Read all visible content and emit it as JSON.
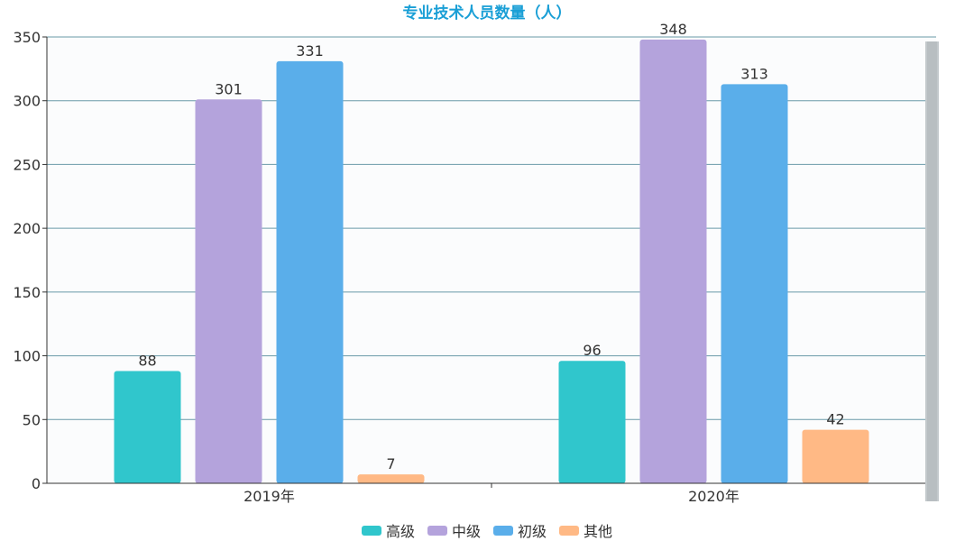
{
  "chart_data": {
    "type": "bar",
    "title": "专业技术人员数量（人）",
    "categories": [
      "2019年",
      "2020年"
    ],
    "series": [
      {
        "name": "高级",
        "values": [
          88,
          96
        ],
        "color": "#30c6cc"
      },
      {
        "name": "中级",
        "values": [
          301,
          348
        ],
        "color": "#b4a3dc"
      },
      {
        "name": "初级",
        "values": [
          331,
          313
        ],
        "color": "#5aaeea"
      },
      {
        "name": "其他",
        "values": [
          7,
          42
        ],
        "color": "#ffb985"
      }
    ],
    "ylim": [
      0,
      350
    ],
    "yticks": [
      0,
      50,
      100,
      150,
      200,
      250,
      300,
      350
    ],
    "grid": true,
    "legend_position": "bottom-center",
    "gridline_color": "#6a9aa8",
    "axis_color": "#333333"
  }
}
